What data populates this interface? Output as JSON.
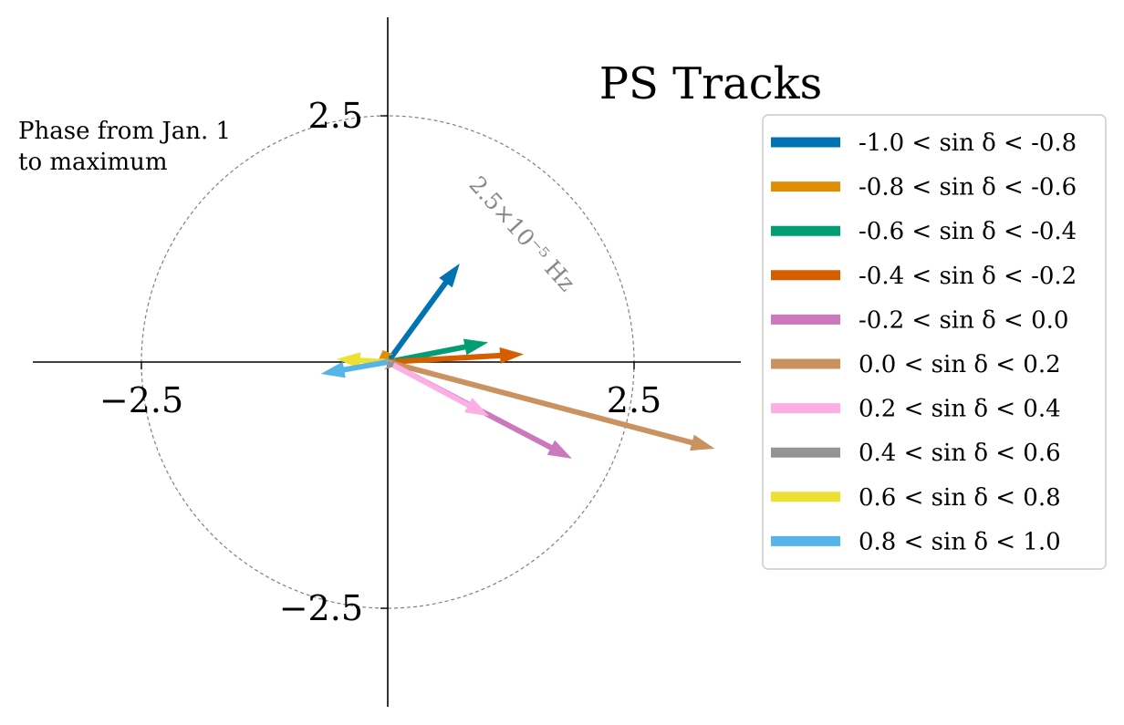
{
  "chart_data": {
    "type": "vector",
    "title": "PS Tracks",
    "annotation": "Phase from Jan. 1\nto maximum",
    "circle": {
      "radius": 2.5,
      "label": "2.5×10⁻⁵ Hz"
    },
    "axes": {
      "xlim": [
        -3.6,
        3.6
      ],
      "ylim": [
        -3.6,
        3.6
      ],
      "x_tick_labels": [
        {
          "value": -2.5,
          "label": "−2.5"
        },
        {
          "value": 2.5,
          "label": "2.5"
        }
      ],
      "y_tick_labels": [
        {
          "value": 2.5,
          "label": "2.5"
        },
        {
          "value": -2.5,
          "label": "−2.5"
        }
      ],
      "grid": false
    },
    "legend_placement": "right",
    "series": [
      {
        "name": "-1.0 < sin δ < -0.8",
        "color": "#0173b2",
        "x": 0.73,
        "y": 1.0
      },
      {
        "name": "-0.8 < sin δ < -0.6",
        "color": "#de8f05",
        "x": -0.05,
        "y": 0.12
      },
      {
        "name": "-0.6 < sin δ < -0.4",
        "color": "#029e73",
        "x": 1.02,
        "y": 0.2
      },
      {
        "name": "-0.4 < sin δ < -0.2",
        "color": "#d55e00",
        "x": 1.38,
        "y": 0.08
      },
      {
        "name": "-0.2 < sin δ < 0.0",
        "color": "#cc78bc",
        "x": 1.87,
        "y": -0.98
      },
      {
        "name": "0.0 < sin δ < 0.2",
        "color": "#ca9161",
        "x": 3.32,
        "y": -0.88
      },
      {
        "name": "0.2 < sin δ < 0.4",
        "color": "#fbafe4",
        "x": 1.03,
        "y": -0.55
      },
      {
        "name": "0.4 < sin δ < 0.6",
        "color": "#949494",
        "x": 0.05,
        "y": -0.05
      },
      {
        "name": "0.6 < sin δ < 0.8",
        "color": "#ece133",
        "x": -0.52,
        "y": 0.03
      },
      {
        "name": "0.8 < sin δ < 1.0",
        "color": "#56b4e9",
        "x": -0.68,
        "y": -0.12
      }
    ]
  }
}
